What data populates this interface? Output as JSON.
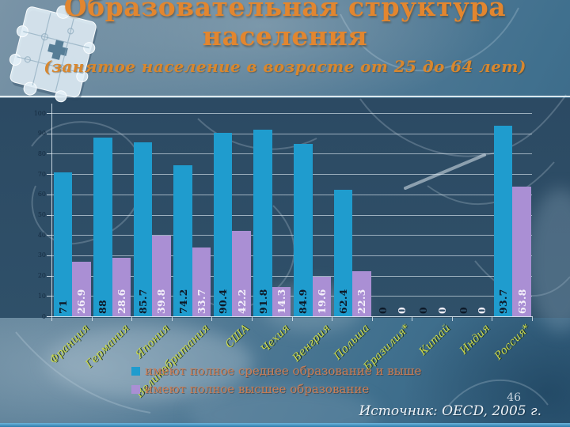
{
  "slide": {
    "title_line1": "Образовательная структура",
    "title_line2": "населения",
    "subtitle": "(занятое население в возрасте от 25 до 64 лет)",
    "page_number": "46",
    "source": "Источник: OECD, 2005 г."
  },
  "colors": {
    "backdrop": "#2d4c66",
    "title": "#e2862f",
    "category_label": "#cbd94e",
    "legend_text": "#c97e57",
    "gridline": "rgba(224,235,243,0.62)",
    "bottom_strip": "#3e8fc0"
  },
  "chart_data": {
    "type": "bar",
    "title": "Образовательная структура населения",
    "xlabel": "",
    "ylabel": "",
    "ylim": [
      0,
      100
    ],
    "yticks": [
      100,
      90,
      80,
      70,
      60,
      50,
      40,
      30,
      20,
      10,
      0
    ],
    "grid": true,
    "legend_position": "bottom",
    "categories": [
      "Франция",
      "Германия",
      "Япония",
      "Великобритания",
      "США",
      "Чехия",
      "Венгрия",
      "Польша",
      "Бразилия*",
      "Китай",
      "Индия",
      "Россия*"
    ],
    "series": [
      {
        "key": "secondary",
        "name": "имеют полное среднее образование и выше",
        "color": "#1f9cce",
        "value_label_color": "#0d1927",
        "values": [
          71,
          88,
          85.7,
          74.2,
          90.4,
          91.8,
          84.9,
          62.4,
          0,
          0,
          0,
          93.7
        ],
        "value_labels": [
          "71",
          "88",
          "85.7",
          "74.2",
          "90.4",
          "91.8",
          "84.9",
          "62.4",
          "0",
          "0",
          "0",
          "93.7"
        ]
      },
      {
        "key": "higher",
        "name": "имеют полное высшее образование",
        "color": "#aa8fd4",
        "value_label_color": "#f4f0fa",
        "values": [
          26.9,
          28.6,
          39.8,
          33.7,
          42.2,
          14.3,
          19.6,
          22.3,
          0,
          0,
          0,
          63.8
        ],
        "value_labels": [
          "26.9",
          "28.6",
          "39.8",
          "33.7",
          "42.2",
          "14.3",
          "19.6",
          "22.3",
          "0",
          "0",
          "0",
          "63.8"
        ]
      }
    ]
  }
}
